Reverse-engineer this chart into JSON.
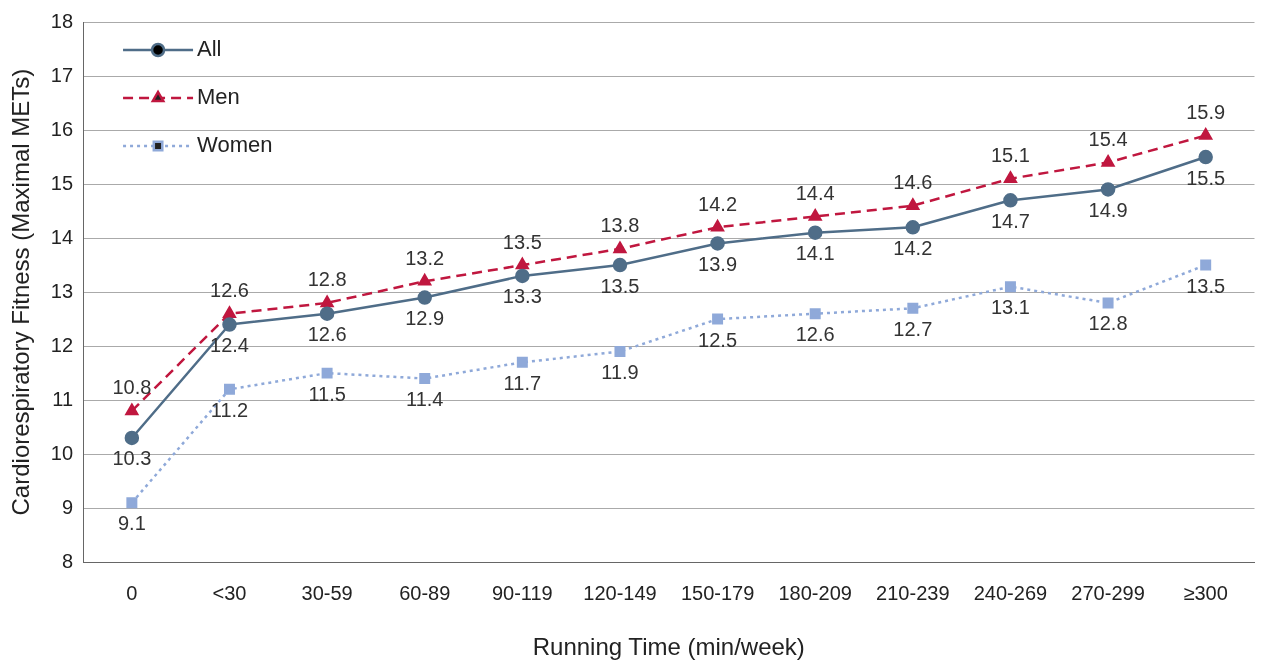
{
  "chart_data": {
    "type": "line",
    "xlabel": "Running Time (min/week)",
    "ylabel": "Cardiorespiratory Fitness (Maximal METs)",
    "categories": [
      "0",
      "<30",
      "30-59",
      "60-89",
      "90-119",
      "120-149",
      "150-179",
      "180-209",
      "210-239",
      "240-269",
      "270-299",
      "≥300"
    ],
    "series": [
      {
        "name": "All",
        "color": "#4f6d88",
        "marker": "circle",
        "line_style": "solid",
        "values": [
          10.3,
          12.4,
          12.6,
          12.9,
          13.3,
          13.5,
          13.9,
          14.1,
          14.2,
          14.7,
          14.9,
          15.5
        ]
      },
      {
        "name": "Men",
        "color": "#c0173f",
        "marker": "triangle",
        "line_style": "dashed",
        "values": [
          10.8,
          12.6,
          12.8,
          13.2,
          13.5,
          13.8,
          14.2,
          14.4,
          14.6,
          15.1,
          15.4,
          15.9
        ]
      },
      {
        "name": "Women",
        "color": "#8fa9d9",
        "marker": "square",
        "line_style": "dotted",
        "values": [
          9.1,
          11.2,
          11.5,
          11.4,
          11.7,
          11.9,
          12.5,
          12.6,
          12.7,
          13.1,
          12.8,
          13.5
        ]
      }
    ],
    "ylim": [
      8,
      18
    ],
    "yticks": [
      8,
      9,
      10,
      11,
      12,
      13,
      14,
      15,
      16,
      17,
      18
    ],
    "grid": "y",
    "legend": "top left",
    "data_labels": true
  }
}
